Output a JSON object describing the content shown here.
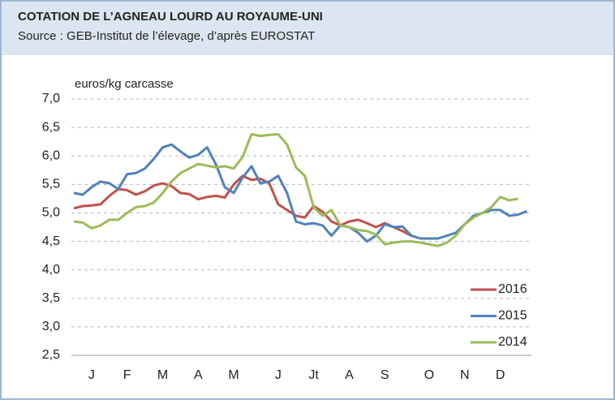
{
  "chart_data": {
    "type": "line",
    "title": "COTATION DE L’AGNEAU LOURD AU ROYAUME-UNI",
    "subtitle": "Source : GEB-Institut de l’élevage, d’après EUROSTAT",
    "y_label": "euros/kg carcasse",
    "categories": [
      null,
      null,
      "J",
      null,
      null,
      null,
      "F",
      null,
      null,
      null,
      "M",
      null,
      null,
      null,
      "A",
      null,
      null,
      null,
      "M",
      null,
      null,
      null,
      null,
      "J",
      null,
      null,
      null,
      "Jt",
      null,
      null,
      null,
      "A",
      null,
      null,
      null,
      "S",
      null,
      null,
      null,
      null,
      "O",
      null,
      null,
      null,
      "N",
      null,
      null,
      null,
      "D",
      null,
      null,
      null
    ],
    "ylim": [
      2.5,
      7.0
    ],
    "yticks": [
      {
        "value": 2.5,
        "label": "2,5"
      },
      {
        "value": 3.0,
        "label": "3,0"
      },
      {
        "value": 3.5,
        "label": "3,5"
      },
      {
        "value": 4.0,
        "label": "4,0"
      },
      {
        "value": 4.5,
        "label": "4,5"
      },
      {
        "value": 5.0,
        "label": "5,0"
      },
      {
        "value": 5.5,
        "label": "5,5"
      },
      {
        "value": 6.0,
        "label": "6,0"
      },
      {
        "value": 6.5,
        "label": "6,5"
      },
      {
        "value": 7.0,
        "label": "7,0"
      }
    ],
    "grid": true,
    "legend": "lower right",
    "series": [
      {
        "name": "2016",
        "color": "#c0504d",
        "values": [
          5.08,
          5.12,
          5.13,
          5.15,
          5.3,
          5.42,
          5.4,
          5.32,
          5.38,
          5.48,
          5.52,
          5.47,
          5.35,
          5.33,
          5.24,
          5.28,
          5.3,
          5.27,
          5.5,
          5.65,
          5.58,
          5.6,
          5.52,
          5.15,
          5.05,
          4.95,
          4.92,
          5.12,
          5.02,
          4.85,
          4.78,
          4.85,
          4.88,
          4.82,
          4.75,
          4.82,
          4.75,
          4.68,
          4.6,
          null,
          null,
          null,
          null,
          null,
          null,
          null,
          null,
          null,
          null,
          null,
          null,
          null
        ]
      },
      {
        "name": "2015",
        "color": "#4f81bd",
        "values": [
          5.35,
          5.32,
          5.45,
          5.55,
          5.52,
          5.42,
          5.68,
          5.7,
          5.78,
          5.95,
          6.15,
          6.2,
          6.08,
          5.97,
          6.02,
          6.15,
          5.85,
          5.45,
          5.35,
          5.62,
          5.82,
          5.52,
          5.55,
          5.65,
          5.35,
          4.85,
          4.8,
          4.82,
          4.78,
          4.6,
          4.78,
          4.75,
          4.65,
          4.5,
          4.6,
          4.8,
          4.75,
          4.76,
          4.6,
          4.55,
          4.55,
          4.55,
          4.6,
          4.65,
          4.8,
          4.95,
          5.0,
          5.05,
          5.05,
          4.95,
          4.97,
          5.03
        ]
      },
      {
        "name": "2014",
        "color": "#9bbb59",
        "values": [
          4.85,
          4.83,
          4.73,
          4.78,
          4.88,
          4.88,
          5.0,
          5.1,
          5.12,
          5.18,
          5.35,
          5.55,
          5.7,
          5.78,
          5.86,
          5.83,
          5.8,
          5.82,
          5.78,
          5.98,
          6.38,
          6.35,
          6.37,
          6.38,
          6.2,
          5.8,
          5.65,
          5.1,
          4.95,
          5.05,
          4.78,
          4.75,
          4.7,
          4.68,
          4.62,
          4.45,
          4.48,
          4.5,
          4.5,
          4.48,
          4.45,
          4.42,
          4.48,
          4.6,
          4.8,
          4.92,
          5.0,
          5.1,
          5.28,
          5.22,
          5.25,
          null
        ]
      }
    ]
  }
}
